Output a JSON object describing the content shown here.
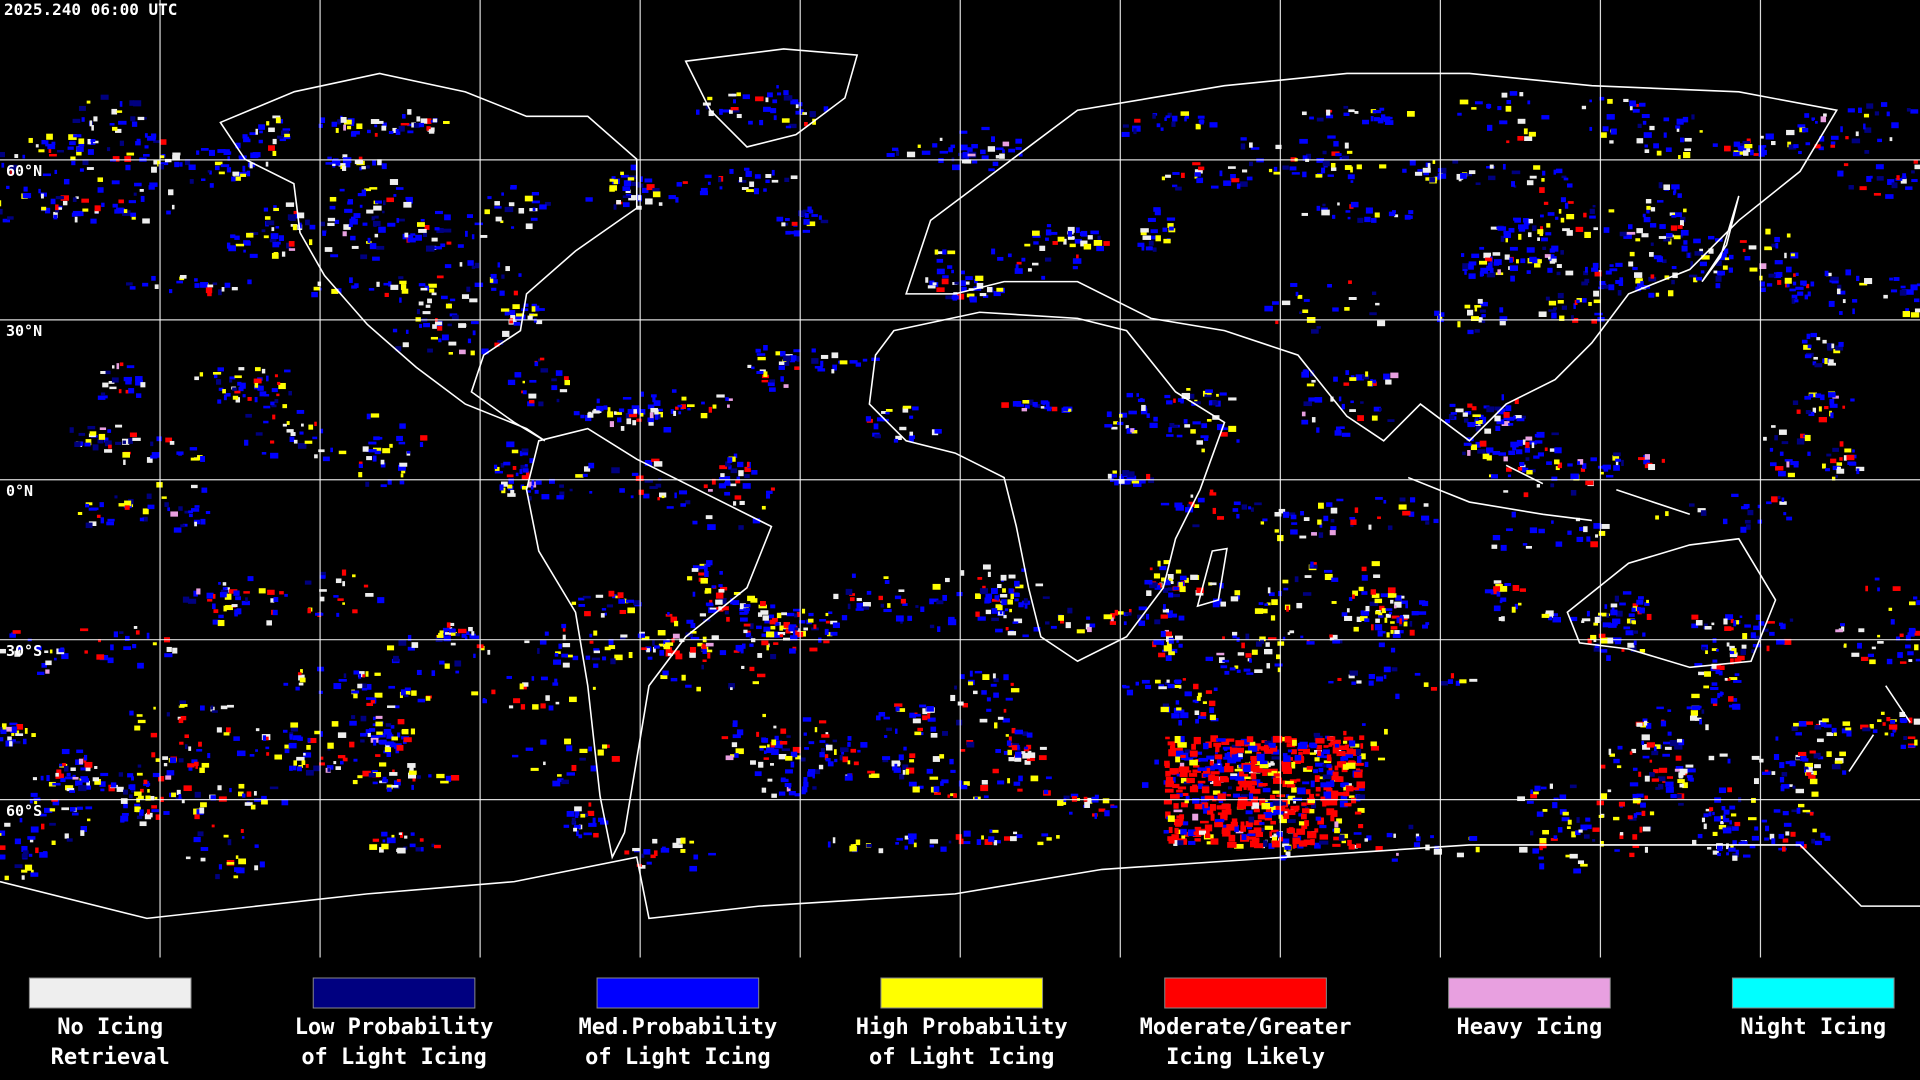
{
  "header": {
    "timestamp": "2025.240 06:00 UTC"
  },
  "map": {
    "latitude_labels": [
      "60°N",
      "30°N",
      "0°N",
      "30°S",
      "60°S"
    ]
  },
  "legend": {
    "items": [
      {
        "color": "#eeeeee",
        "label_lines": [
          "No Icing",
          "Retrieval"
        ]
      },
      {
        "color": "#000080",
        "label_lines": [
          "Low Probability",
          "of Light Icing"
        ]
      },
      {
        "color": "#0000ff",
        "label_lines": [
          "Med.Probability",
          "of Light Icing"
        ]
      },
      {
        "color": "#ffff00",
        "label_lines": [
          "High Probability",
          "of Light Icing"
        ]
      },
      {
        "color": "#ff0000",
        "label_lines": [
          "Moderate/Greater",
          "Icing Likely"
        ]
      },
      {
        "color": "#e8a0e0",
        "label_lines": [
          "Heavy Icing"
        ]
      },
      {
        "color": "#00ffff",
        "label_lines": [
          "Night Icing"
        ]
      }
    ]
  }
}
